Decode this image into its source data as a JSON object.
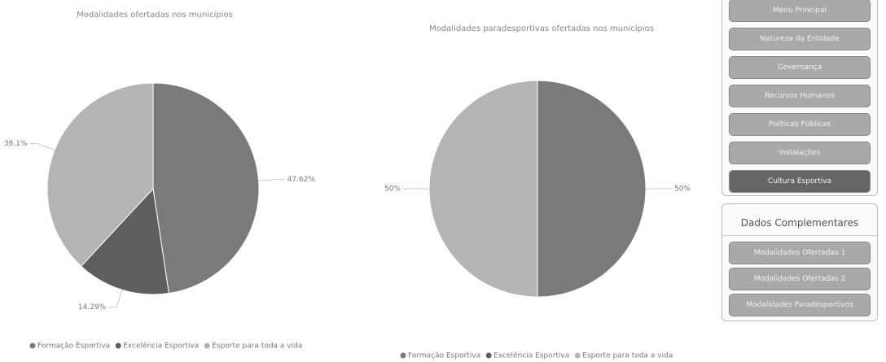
{
  "chart_data": [
    {
      "type": "pie",
      "title": "Modalidades ofertadas nos municípios",
      "categories": [
        "Formação Esportiva",
        "Excelência Esportiva",
        "Esporte para toda a vida"
      ],
      "values": [
        47.62,
        14.29,
        38.1
      ],
      "value_labels": [
        "47.62%",
        "14.29%",
        "38.1%"
      ],
      "colors": [
        "#7a7a7a",
        "#5e5e5e",
        "#b4b4b4"
      ]
    },
    {
      "type": "pie",
      "title": "Modalidades paradesportivas ofertadas nos municípios",
      "categories": [
        "Formação Esportiva",
        "Excelência Esportiva",
        "Esporte para toda a vida"
      ],
      "values": [
        50,
        0,
        50
      ],
      "value_labels": [
        "50%",
        null,
        "50%"
      ],
      "colors": [
        "#7a7a7a",
        "#5e5e5e",
        "#b4b4b4"
      ]
    }
  ],
  "menu": {
    "items": [
      "Menu Principal",
      "Natureza da Entidade",
      "Governança",
      "Recursos Humanos",
      "Políticas Públicas",
      "Instalações",
      "Cultura Esportiva"
    ],
    "section_title": "Dados Complementares",
    "sub_items": [
      "Modalidades Ofertadas 1",
      "Modalidades Ofertadas 2",
      "Modalidades Paradesportivos"
    ]
  }
}
